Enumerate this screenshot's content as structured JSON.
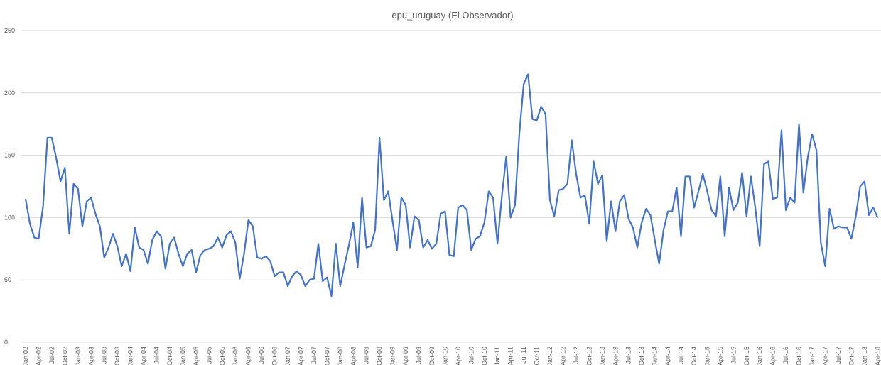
{
  "chart_data": {
    "type": "line",
    "title": "epu_uruguay (El Observador)",
    "categories": [
      "Jan-02",
      null,
      null,
      "Apr-02",
      null,
      null,
      "Jul-02",
      null,
      null,
      "Oct-02",
      null,
      null,
      "Jan-03",
      null,
      null,
      "Apr-03",
      null,
      null,
      "Jul-03",
      null,
      null,
      "Oct-03",
      null,
      null,
      "Jan-04",
      null,
      null,
      "Apr-04",
      null,
      null,
      "Jul-04",
      null,
      null,
      "Oct-04",
      null,
      null,
      "Jan-05",
      null,
      null,
      "Apr-05",
      null,
      null,
      "Jul-05",
      null,
      null,
      "Oct-05",
      null,
      null,
      "Jan-06",
      null,
      null,
      "Apr-06",
      null,
      null,
      "Jul-06",
      null,
      null,
      "Oct-06",
      null,
      null,
      "Jan-07",
      null,
      null,
      "Apr-07",
      null,
      null,
      "Jul-07",
      null,
      null,
      "Oct-07",
      null,
      null,
      "Jan-08",
      null,
      null,
      "Apr-08",
      null,
      null,
      "Jul-08",
      null,
      null,
      "Oct-08",
      null,
      null,
      "Jan-09",
      null,
      null,
      "Apr-09",
      null,
      null,
      "Jul-09",
      null,
      null,
      "Oct-09",
      null,
      null,
      "Jan-10",
      null,
      null,
      "Apr-10",
      null,
      null,
      "Jul-10",
      null,
      null,
      "Oct-10",
      null,
      null,
      "Jan-11",
      null,
      null,
      "Apr-11",
      null,
      null,
      "Jul-11",
      null,
      null,
      "Oct-11",
      null,
      null,
      "Jan-12",
      null,
      null,
      "Apr-12",
      null,
      null,
      "Jul-12",
      null,
      null,
      "Oct-12",
      null,
      null,
      "Jan-13",
      null,
      null,
      "Apr-13",
      null,
      null,
      "Jul-13",
      null,
      null,
      "Oct-13",
      null,
      null,
      "Jan-14",
      null,
      null,
      "Apr-14",
      null,
      null,
      "Jul-14",
      null,
      null,
      "Oct-14",
      null,
      null,
      "Jan-15",
      null,
      null,
      "Apr-15",
      null,
      null,
      "Jul-15",
      null,
      null,
      "Oct-15",
      null,
      null,
      "Jan-16",
      null,
      null,
      "Apr-16",
      null,
      null,
      "Jul-16",
      null,
      null,
      "Oct-16",
      null,
      null,
      "Jan-17",
      null,
      null,
      "Apr-17",
      null,
      null,
      "Jul-17",
      null,
      null,
      "Oct-17",
      null,
      null,
      "Jan-18",
      null,
      null,
      "Apr-18"
    ],
    "values": [
      115,
      95,
      84,
      83,
      109,
      164,
      164,
      148,
      129,
      140,
      87,
      127,
      123,
      93,
      113,
      116,
      103,
      93,
      68,
      76,
      87,
      77,
      61,
      71,
      57,
      92,
      76,
      74,
      63,
      82,
      89,
      85,
      59,
      79,
      84,
      71,
      61,
      71,
      74,
      56,
      70,
      74,
      75,
      77,
      84,
      76,
      86,
      89,
      80,
      51,
      71,
      98,
      93,
      68,
      67,
      69,
      65,
      53,
      56,
      56,
      45,
      53,
      57,
      54,
      45,
      50,
      51,
      79,
      49,
      52,
      37,
      79,
      45,
      62,
      78,
      96,
      60,
      116,
      76,
      77,
      90,
      164,
      114,
      121,
      97,
      74,
      116,
      110,
      76,
      101,
      98,
      76,
      82,
      75,
      79,
      103,
      105,
      70,
      69,
      108,
      110,
      106,
      74,
      83,
      85,
      96,
      121,
      116,
      79,
      117,
      149,
      100,
      110,
      167,
      207,
      215,
      179,
      178,
      189,
      183,
      114,
      101,
      122,
      123,
      127,
      162,
      135,
      116,
      118,
      95,
      145,
      127,
      134,
      81,
      113,
      89,
      113,
      118,
      99,
      92,
      76,
      96,
      107,
      102,
      82,
      63,
      90,
      105,
      105,
      124,
      85,
      133,
      133,
      108,
      121,
      135,
      121,
      106,
      101,
      133,
      85,
      124,
      106,
      112,
      136,
      101,
      133,
      108,
      77,
      143,
      145,
      115,
      116,
      170,
      106,
      116,
      112,
      175,
      120,
      148,
      167,
      154,
      80,
      61,
      107,
      91,
      93,
      92,
      92,
      83,
      101,
      125,
      129,
      102,
      108,
      100
    ],
    "color": "#4472c4",
    "ylim": [
      0,
      250
    ],
    "yticks": [
      0,
      50,
      100,
      150,
      200,
      250
    ],
    "grid": true
  }
}
